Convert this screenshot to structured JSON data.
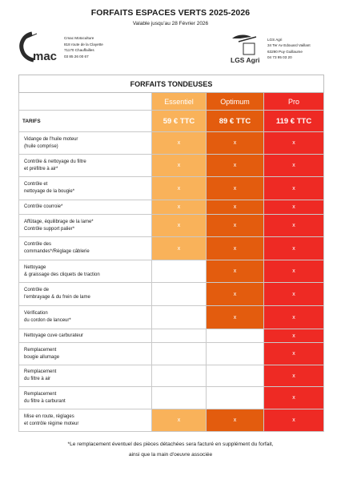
{
  "header": {
    "title": "FORFAITS ESPACES VERTS 2025-2026",
    "subtitle": "Valable jusqu'au 28 Février 2026"
  },
  "left_company": {
    "logo_text": "mac",
    "name": "Cmac Motoculture",
    "address1": "818 route de la Clayette",
    "address2": "71170 Chauffailles",
    "phone": "03 85 26 00 67"
  },
  "right_company": {
    "logo_text": "LGS Agri",
    "name": "LGS Agri",
    "address1": "34 Ter Av Edouard Vaillant",
    "address2": "63290 Puy Guillaume",
    "phone": "04 73 95 03 20"
  },
  "table": {
    "header": "FORFAITS TONDEUSES",
    "tiers": [
      "Essentiel",
      "Optimum",
      "Pro"
    ],
    "price_label": "TARIFS",
    "prices": [
      "59 € TTC",
      "89 € TTC",
      "119 € TTC"
    ],
    "mark": "x",
    "services": [
      {
        "l1": "Vidange de l'huile moteur",
        "l2": "(huile comprise)",
        "incl": [
          true,
          true,
          true
        ]
      },
      {
        "l1": "Contrôle  & nettoyage du filtre",
        "l2": "et préfiltre à air*",
        "incl": [
          true,
          true,
          true
        ]
      },
      {
        "l1": "Contrôle et",
        "l2": "nettoyage de la bougie*",
        "incl": [
          true,
          true,
          true
        ]
      },
      {
        "l1": "Contrôle courroie*",
        "l2": "",
        "incl": [
          true,
          true,
          true
        ]
      },
      {
        "l1": "Affûtage, équilibrage de la lame*",
        "l2": "Contrôle support palier*",
        "incl": [
          true,
          true,
          true
        ]
      },
      {
        "l1": "Contrôle des",
        "l2": "commandes*/Réglage câblerie",
        "incl": [
          true,
          true,
          true
        ]
      },
      {
        "l1": "Nettoyage",
        "l2": "& graissage des cliquets de traction",
        "incl": [
          false,
          true,
          true
        ]
      },
      {
        "l1": "Contrôle de",
        "l2": "l'embrayage & du frein de lame",
        "incl": [
          false,
          true,
          true
        ]
      },
      {
        "l1": "Vérification",
        "l2": "du cordon de lanceur*",
        "incl": [
          false,
          true,
          true
        ]
      },
      {
        "l1": "Nettoyage cuve carburateur",
        "l2": "",
        "incl": [
          false,
          false,
          true
        ]
      },
      {
        "l1": "Remplacement",
        "l2": "bougie allumage",
        "incl": [
          false,
          false,
          true
        ]
      },
      {
        "l1": "Remplacement",
        "l2": "du filtre à air",
        "incl": [
          false,
          false,
          true
        ]
      },
      {
        "l1": "Remplacement",
        "l2": "du filtre à carburant",
        "incl": [
          false,
          false,
          true
        ]
      },
      {
        "l1": "Mise en route, réglages",
        "l2": "et contrôle régime moteur",
        "incl": [
          true,
          true,
          true
        ]
      }
    ]
  },
  "footnote": {
    "line1": "*Le remplacement éventuel des pièces détachées sera facturé en supplément du forfait,",
    "line2": "ainsi que la main d'oeuvre associée"
  },
  "colors": {
    "essentiel": "#f9b25a",
    "optimum": "#e35c0e",
    "pro": "#ee2a24"
  }
}
